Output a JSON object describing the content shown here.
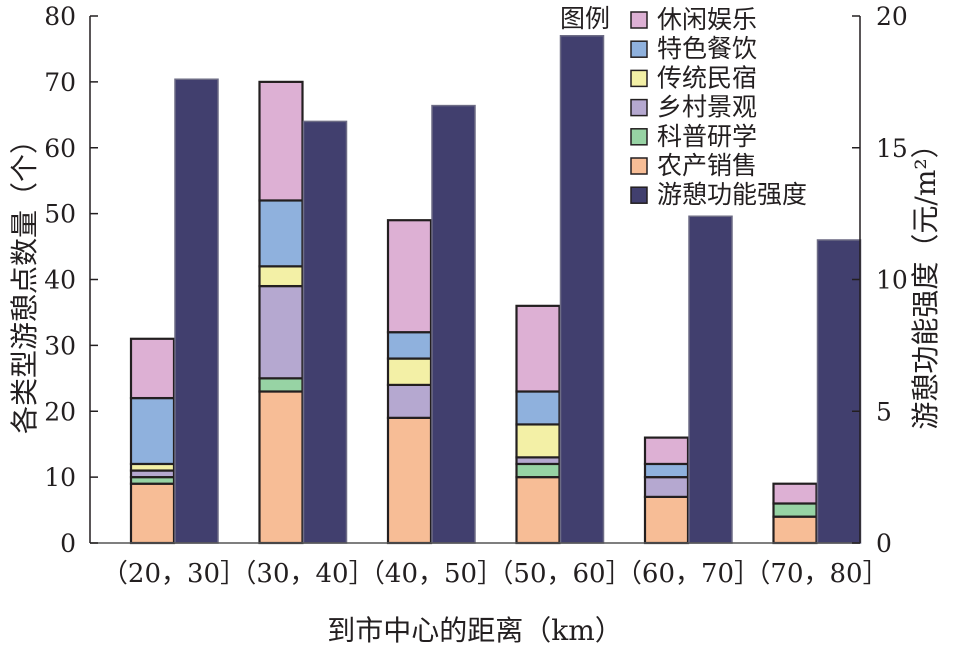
{
  "chart_data": {
    "type": "bar",
    "subtype": "grouped stacked bar with secondary axis",
    "categories": [
      "（20，30］",
      "（30，40］",
      "（40，50］",
      "（50，60］",
      "（60，70］",
      "（70，80］"
    ],
    "xlabel": "到市中心的距离（km）",
    "ylabel": "各类型游憩点数量（个）",
    "ylabel_right": "游憩功能强度（元/m²）",
    "ylim": [
      0,
      80
    ],
    "ylim_right": [
      0,
      20
    ],
    "yticks": [
      0,
      10,
      20,
      30,
      40,
      50,
      60,
      70,
      80
    ],
    "yticks_right": [
      0,
      5,
      10,
      15,
      20
    ],
    "legend": {
      "title": "图例",
      "placement": "top-right"
    },
    "stacked_series": [
      {
        "name": "农产销售",
        "color": "#f7bd96",
        "values": [
          9,
          23,
          19,
          10,
          7,
          4
        ]
      },
      {
        "name": "科普研学",
        "color": "#97d3a4",
        "values": [
          1,
          2,
          0,
          2,
          0,
          2
        ]
      },
      {
        "name": "乡村景观",
        "color": "#b5a8d0",
        "values": [
          1,
          14,
          5,
          1,
          3,
          0
        ]
      },
      {
        "name": "传统民宿",
        "color": "#f3f0a6",
        "values": [
          1,
          3,
          4,
          5,
          0,
          0
        ]
      },
      {
        "name": "特色餐饮",
        "color": "#8fb1dd",
        "values": [
          10,
          10,
          4,
          5,
          2,
          0
        ]
      },
      {
        "name": "休闲娱乐",
        "color": "#ddb0d4",
        "values": [
          9,
          18,
          17,
          13,
          4,
          3
        ]
      }
    ],
    "secondary_series": {
      "name": "游憩功能强度",
      "color": "#413f6e",
      "axis": "right",
      "values": [
        17.6,
        16.0,
        16.6,
        19.25,
        12.4,
        11.5
      ]
    },
    "grid": false
  }
}
